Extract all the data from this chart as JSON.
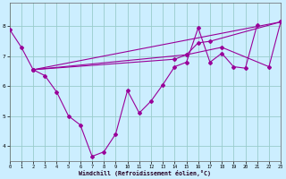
{
  "xlabel": "Windchill (Refroidissement éolien,°C)",
  "background_color": "#cceeff",
  "grid_color": "#99cccc",
  "line_color": "#990099",
  "line1_x": [
    0,
    1,
    2,
    3,
    4,
    5,
    6,
    7,
    8,
    9,
    10,
    11,
    12,
    13,
    14,
    15,
    16,
    17,
    18,
    19,
    20,
    21
  ],
  "line1_y": [
    7.9,
    7.3,
    6.55,
    6.35,
    5.8,
    5.0,
    4.7,
    3.65,
    3.8,
    4.4,
    5.85,
    5.1,
    5.5,
    6.05,
    6.65,
    6.8,
    7.95,
    6.8,
    7.1,
    6.65,
    6.6,
    8.05
  ],
  "trend1_x": [
    2,
    23
  ],
  "trend1_y": [
    6.55,
    8.15
  ],
  "trend2_x": [
    2,
    15,
    16,
    17,
    23
  ],
  "trend2_y": [
    6.55,
    7.05,
    7.45,
    7.5,
    8.15
  ],
  "trend3_x": [
    2,
    14,
    15,
    18,
    22,
    23
  ],
  "trend3_y": [
    6.55,
    6.9,
    7.05,
    7.3,
    6.65,
    8.15
  ],
  "ylim": [
    3.5,
    8.8
  ],
  "xlim": [
    0,
    23
  ],
  "yticks": [
    4,
    5,
    6,
    7,
    8
  ],
  "xticks": [
    0,
    1,
    2,
    3,
    4,
    5,
    6,
    7,
    8,
    9,
    10,
    11,
    12,
    13,
    14,
    15,
    16,
    17,
    18,
    19,
    20,
    21,
    22,
    23
  ]
}
